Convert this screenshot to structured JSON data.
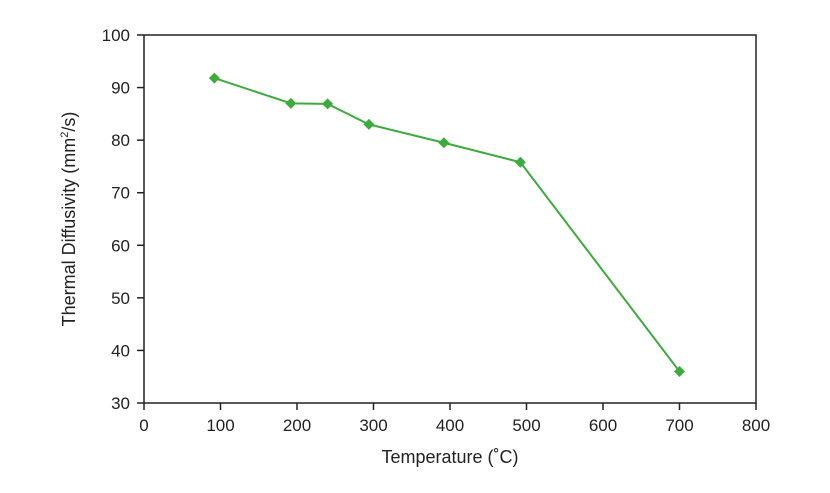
{
  "chart_data": {
    "type": "line",
    "title": "",
    "xlabel": "Temperature (˚C)",
    "ylabel_main": "Thermal Diffusivity (mm",
    "ylabel_sup": "2",
    "ylabel_tail": "/s)",
    "xlim": [
      0,
      800
    ],
    "ylim": [
      30,
      100
    ],
    "xticks": [
      0,
      100,
      200,
      300,
      400,
      500,
      600,
      700,
      800
    ],
    "yticks": [
      30,
      40,
      50,
      60,
      70,
      80,
      90,
      100
    ],
    "grid": false,
    "legend": "none",
    "series": [
      {
        "color": "#3cab3c",
        "marker": "diamond",
        "x": [
          92,
          192,
          240,
          294,
          392,
          492,
          700
        ],
        "y": [
          91.8,
          87.0,
          86.9,
          83.0,
          79.5,
          75.8,
          36.0
        ]
      }
    ]
  }
}
